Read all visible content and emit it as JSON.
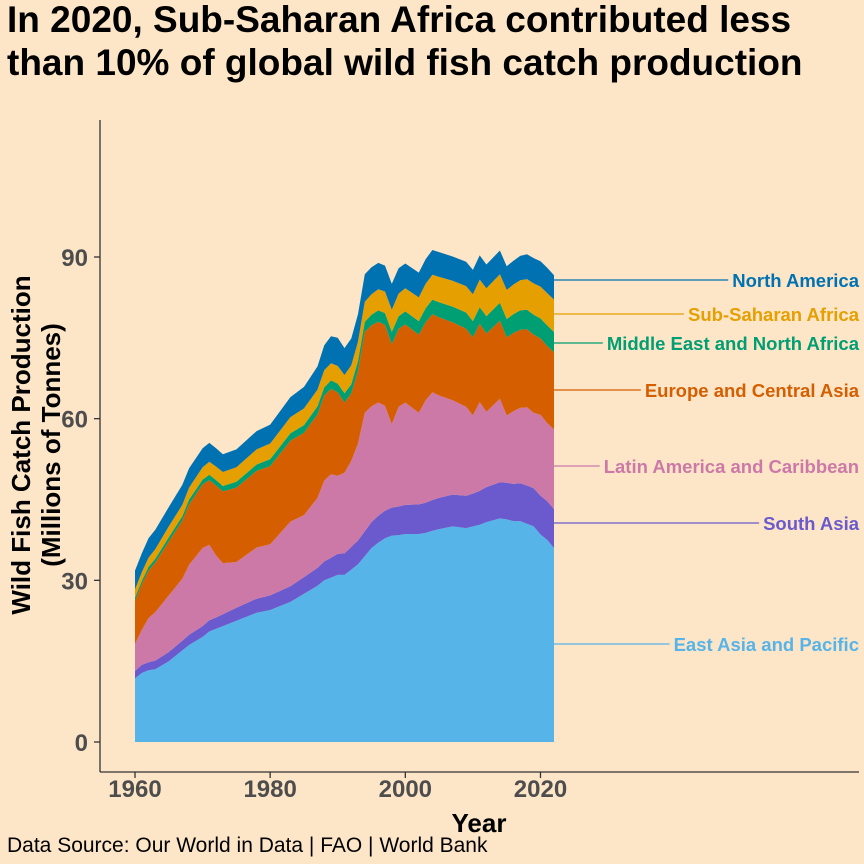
{
  "chart_data": {
    "type": "area",
    "stacked": true,
    "title": "In 2020, Sub-Saharan Africa contributed less than 10% of global wild fish catch production",
    "title_lines": [
      "In 2020, Sub-Saharan Africa contributed less",
      "than 10% of global wild fish catch production"
    ],
    "xlabel": "Year",
    "ylabel_lines": [
      "Wild Fish Catch Production",
      "(Millions of Tonnes)"
    ],
    "caption": "Data Source: Our World in Data | FAO | World Bank",
    "xlim": [
      1960,
      2022
    ],
    "ylim": [
      0,
      115
    ],
    "x_ticks": [
      1960,
      1980,
      2000,
      2020
    ],
    "y_ticks": [
      0,
      30,
      60,
      90
    ],
    "grid": false,
    "legend": "direct labels at right",
    "keyframe_years": [
      1960,
      1961,
      1962,
      1963,
      1965,
      1967,
      1968,
      1970,
      1971,
      1972,
      1973,
      1975,
      1978,
      1980,
      1983,
      1985,
      1987,
      1988,
      1989,
      1990,
      1991,
      1992,
      1993,
      1994,
      1995,
      1996,
      1997,
      1998,
      1999,
      2000,
      2002,
      2003,
      2004,
      2005,
      2007,
      2009,
      2010,
      2011,
      2012,
      2014,
      2015,
      2016,
      2017,
      2018,
      2019,
      2020,
      2021,
      2022
    ],
    "series": [
      {
        "name": "East Asia and Pacific",
        "color": "#56B4E9",
        "values": [
          11.8,
          12.8,
          13.3,
          13.5,
          15.0,
          17.0,
          18.0,
          19.5,
          20.5,
          21.0,
          21.5,
          22.5,
          24.0,
          24.5,
          26.0,
          27.5,
          29.0,
          30.0,
          30.5,
          31.0,
          31.0,
          32.0,
          33.0,
          34.5,
          36.0,
          37.0,
          37.8,
          38.3,
          38.4,
          38.6,
          38.6,
          38.8,
          39.2,
          39.5,
          40.0,
          39.7,
          40.0,
          40.3,
          40.8,
          41.5,
          41.3,
          41.0,
          41.0,
          40.5,
          40.0,
          38.5,
          37.5,
          36.0
        ]
      },
      {
        "name": "South Asia",
        "color": "#6A5ACD",
        "values": [
          1.4,
          1.5,
          1.5,
          1.6,
          1.7,
          1.8,
          1.9,
          2.0,
          2.1,
          2.1,
          2.2,
          2.4,
          2.6,
          2.7,
          2.9,
          3.1,
          3.3,
          3.5,
          3.7,
          3.9,
          4.0,
          4.2,
          4.4,
          4.6,
          4.8,
          5.0,
          5.1,
          5.2,
          5.3,
          5.4,
          5.5,
          5.6,
          5.7,
          5.8,
          5.9,
          6.0,
          6.1,
          6.3,
          6.5,
          6.7,
          6.8,
          6.9,
          7.0,
          7.1,
          7.1,
          7.2,
          7.2,
          7.2
        ]
      },
      {
        "name": "Latin America and Caribbean",
        "color": "#CC79A7",
        "values": [
          5.0,
          6.5,
          8.2,
          9.0,
          10.5,
          11.5,
          13.0,
          14.5,
          14.0,
          11.5,
          9.5,
          8.5,
          9.5,
          9.5,
          12.0,
          11.5,
          13.0,
          15.0,
          15.5,
          14.5,
          15.0,
          16.0,
          18.0,
          22.0,
          21.5,
          21.0,
          19.5,
          15.5,
          18.5,
          19.0,
          17.0,
          19.0,
          20.0,
          19.0,
          17.5,
          16.5,
          14.5,
          16.5,
          14.0,
          15.5,
          12.5,
          13.5,
          14.0,
          14.5,
          14.0,
          15.0,
          14.5,
          14.8
        ]
      },
      {
        "name": "Europe and Central Asia",
        "color": "#D55E00",
        "values": [
          8.0,
          8.5,
          8.8,
          9.2,
          10.0,
          10.8,
          11.2,
          11.8,
          12.0,
          13.0,
          13.3,
          13.8,
          14.2,
          14.5,
          15.0,
          15.3,
          15.5,
          15.8,
          15.8,
          15.5,
          13.0,
          12.5,
          13.5,
          15.0,
          15.0,
          15.0,
          15.0,
          14.8,
          14.5,
          14.5,
          14.5,
          14.5,
          14.5,
          14.5,
          14.5,
          14.5,
          14.5,
          14.5,
          14.5,
          14.5,
          14.5,
          14.5,
          14.5,
          14.5,
          14.5,
          14.2,
          14.3,
          14.3
        ]
      },
      {
        "name": "Middle East and North Africa",
        "color": "#009E73",
        "values": [
          0.6,
          0.6,
          0.7,
          0.7,
          0.8,
          0.8,
          0.9,
          0.9,
          1.0,
          1.0,
          1.0,
          1.1,
          1.2,
          1.3,
          1.4,
          1.4,
          1.5,
          1.5,
          1.6,
          1.6,
          1.7,
          1.7,
          1.8,
          1.9,
          2.0,
          2.1,
          2.2,
          2.3,
          2.3,
          2.4,
          2.5,
          2.6,
          2.7,
          2.8,
          2.9,
          3.0,
          3.0,
          3.1,
          3.2,
          3.3,
          3.4,
          3.5,
          3.6,
          3.6,
          3.7,
          3.7,
          3.8,
          3.8
        ]
      },
      {
        "name": "Sub-Saharan Africa",
        "color": "#E69F00",
        "values": [
          1.5,
          1.6,
          1.7,
          1.8,
          2.0,
          2.1,
          2.2,
          2.3,
          2.4,
          2.5,
          2.6,
          2.7,
          2.8,
          2.9,
          3.0,
          3.1,
          3.1,
          3.2,
          3.2,
          3.3,
          3.4,
          3.5,
          3.6,
          3.7,
          3.8,
          3.9,
          4.0,
          4.1,
          4.2,
          4.3,
          4.4,
          4.5,
          4.6,
          4.7,
          4.8,
          4.9,
          5.0,
          5.1,
          5.2,
          5.3,
          5.4,
          5.5,
          5.6,
          5.7,
          5.8,
          5.9,
          6.0,
          6.0
        ]
      },
      {
        "name": "North America",
        "color": "#0072B2",
        "values": [
          3.5,
          3.5,
          3.6,
          3.6,
          3.6,
          3.7,
          3.6,
          3.5,
          3.5,
          3.4,
          3.3,
          3.3,
          3.4,
          3.5,
          3.7,
          4.0,
          4.3,
          4.6,
          5.0,
          5.2,
          5.0,
          5.0,
          5.1,
          5.1,
          5.0,
          4.9,
          4.8,
          4.8,
          4.7,
          4.6,
          4.6,
          4.6,
          4.6,
          4.6,
          4.5,
          4.5,
          4.5,
          4.5,
          4.4,
          4.4,
          4.4,
          4.4,
          4.5,
          4.6,
          4.7,
          4.7,
          4.7,
          4.5
        ]
      }
    ]
  }
}
